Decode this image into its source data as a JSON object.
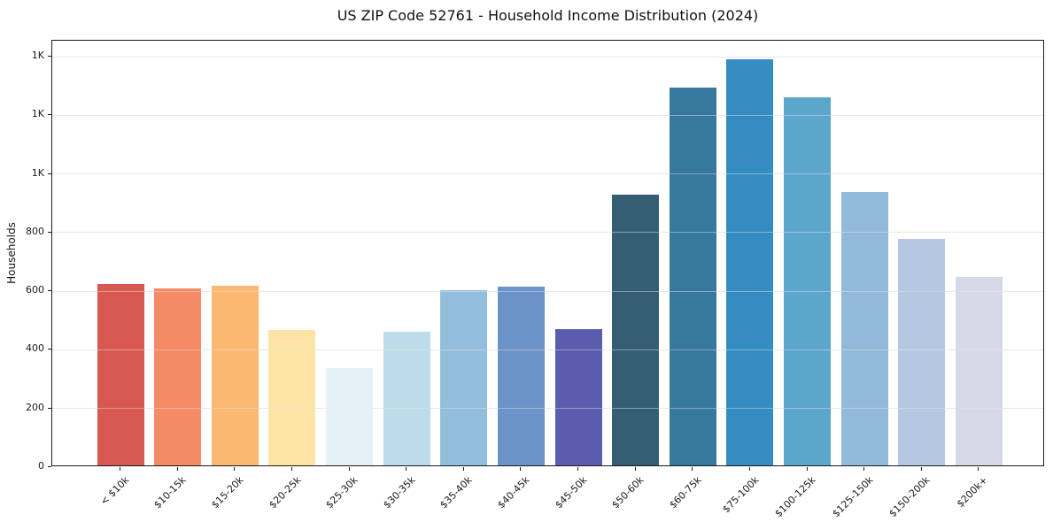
{
  "title": "US ZIP Code 52761 - Household Income Distribution (2024)",
  "ylabel": "Households",
  "chart_data": {
    "type": "bar",
    "title": "US ZIP Code 52761 - Household Income Distribution (2024)",
    "xlabel": "",
    "ylabel": "Households",
    "ylim": [
      0,
      1455
    ],
    "grid": true,
    "legend": "none",
    "categories": [
      "< $10k",
      "$10-15k",
      "$15-20k",
      "$20-25k",
      "$25-30k",
      "$30-35k",
      "$35-40k",
      "$40-45k",
      "$45-50k",
      "$50-60k",
      "$60-75k",
      "$75-100k",
      "$100-125k",
      "$125-150k",
      "$150-200k",
      "$200k+"
    ],
    "values": [
      620,
      605,
      612,
      462,
      331,
      456,
      598,
      610,
      466,
      925,
      1290,
      1387,
      1255,
      933,
      774,
      643
    ],
    "bar_colors": [
      "#d65850",
      "#f48a66",
      "#fbb871",
      "#fce4a6",
      "#e4f2f8",
      "#bddcea",
      "#92bedc",
      "#6b93c7",
      "#5a5dad",
      "#345e74",
      "#36789e",
      "#358cc0",
      "#5ca5cb",
      "#93b9da",
      "#b5c8e1",
      "#d7d9e8"
    ],
    "yticks": [
      {
        "value": 0,
        "label": "0"
      },
      {
        "value": 200,
        "label": "200"
      },
      {
        "value": 400,
        "label": "400"
      },
      {
        "value": 600,
        "label": "600"
      },
      {
        "value": 800,
        "label": "800"
      },
      {
        "value": 1000,
        "label": "1K"
      },
      {
        "value": 1200,
        "label": "1K"
      },
      {
        "value": 1400,
        "label": "1K"
      }
    ]
  }
}
